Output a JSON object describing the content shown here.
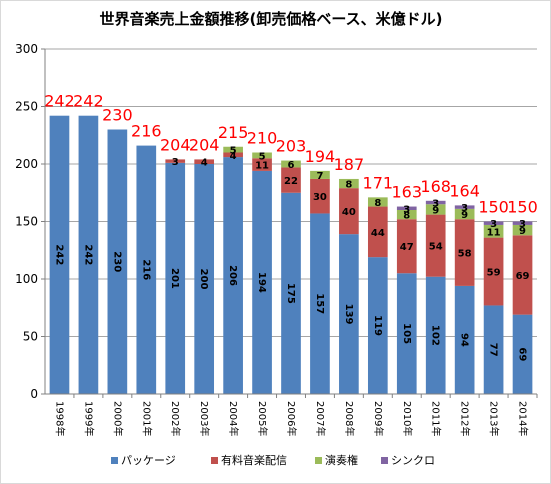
{
  "chart_data": {
    "type": "bar",
    "stacked": true,
    "title": "世界音楽売上金額推移(卸売価格ベース、米億ドル)",
    "categories": [
      "1998年",
      "1999年",
      "2000年",
      "2001年",
      "2002年",
      "2003年",
      "2004年",
      "2005年",
      "2006年",
      "2007年",
      "2008年",
      "2009年",
      "2010年",
      "2011年",
      "2012年",
      "2013年",
      "2014年"
    ],
    "series": [
      {
        "name": "パッケージ",
        "color": "#4f81bd",
        "label_color": "#000000",
        "values": [
          242,
          242,
          230,
          216,
          201,
          200,
          206,
          194,
          175,
          157,
          139,
          119,
          105,
          102,
          94,
          77,
          69
        ]
      },
      {
        "name": "有料音楽配信",
        "color": "#c0504d",
        "label_color": "#000000",
        "values": [
          null,
          null,
          null,
          null,
          3,
          4,
          4,
          11,
          22,
          30,
          40,
          44,
          47,
          54,
          58,
          59,
          69
        ]
      },
      {
        "name": "演奏権",
        "color": "#9bbb59",
        "label_color": "#000000",
        "values": [
          null,
          null,
          null,
          null,
          null,
          null,
          5,
          5,
          6,
          7,
          8,
          8,
          8,
          9,
          9,
          11,
          9
        ]
      },
      {
        "name": "シンクロ",
        "color": "#8064a2",
        "label_color": "#000000",
        "values": [
          null,
          null,
          null,
          null,
          null,
          null,
          null,
          null,
          null,
          null,
          null,
          null,
          3,
          3,
          3,
          3,
          3
        ]
      }
    ],
    "totals": [
      242,
      242,
      230,
      216,
      204,
      204,
      215,
      210,
      203,
      194,
      187,
      171,
      163,
      168,
      164,
      150,
      150
    ],
    "total_label_color": "#ff0000",
    "ylim": [
      0,
      300
    ],
    "yticks": [
      0,
      50,
      100,
      150,
      200,
      250,
      300
    ],
    "grid": true,
    "legend_position": "bottom",
    "xlabel": "",
    "ylabel": ""
  }
}
